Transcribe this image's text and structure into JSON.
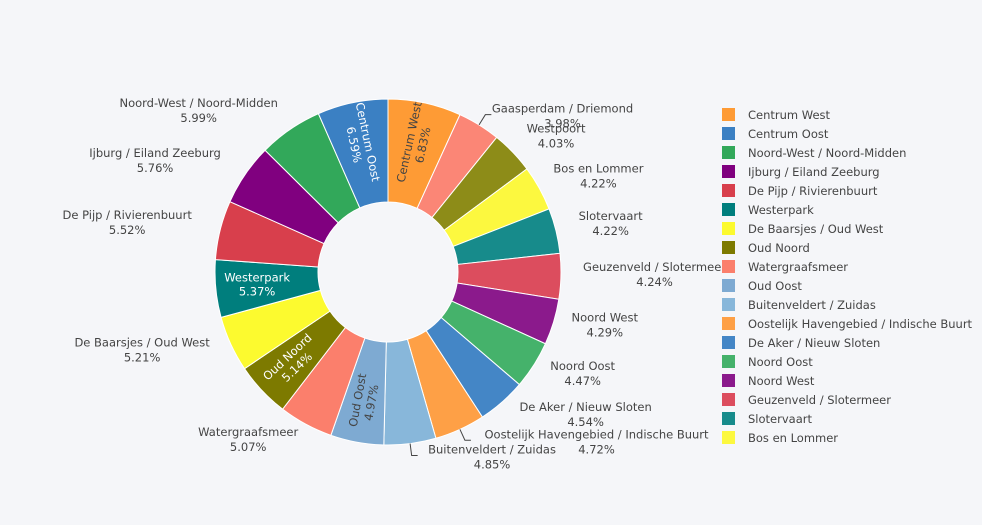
{
  "chart_data": {
    "type": "pie",
    "hole": true,
    "slices": [
      {
        "label": "Centrum West",
        "value": 6.83,
        "text": "6.83%",
        "color": "#fe9b35"
      },
      {
        "label": "Gaasperdam / Driemond",
        "value": 3.98,
        "text": "3.98%",
        "color": "#fb8676"
      },
      {
        "label": "Westpoort",
        "value": 4.03,
        "text": "4.03%",
        "color": "#8d8c18"
      },
      {
        "label": "Bos en Lommer",
        "value": 4.22,
        "text": "4.22%",
        "color": "#fcf83f"
      },
      {
        "label": "Slotervaart",
        "value": 4.22,
        "text": "4.22%",
        "color": "#178b8b"
      },
      {
        "label": "Geuzenveld / Slotermeer",
        "value": 4.24,
        "text": "4.24%",
        "color": "#dc4d5e"
      },
      {
        "label": "Noord West",
        "value": 4.29,
        "text": "4.29%",
        "color": "#8b1a8c"
      },
      {
        "label": "Noord Oost",
        "value": 4.47,
        "text": "4.47%",
        "color": "#45b26b"
      },
      {
        "label": "De Aker / Nieuw Sloten",
        "value": 4.54,
        "text": "4.54%",
        "color": "#4486c6"
      },
      {
        "label": "Oostelijk Havengebied / Indische Buurt",
        "value": 4.72,
        "text": "4.72%",
        "color": "#fea046"
      },
      {
        "label": "Buitenveldert / Zuidas",
        "value": 4.85,
        "text": "4.85%",
        "color": "#88b7da"
      },
      {
        "label": "Oud Oost",
        "value": 4.97,
        "text": "4.97%",
        "color": "#7eaad2"
      },
      {
        "label": "Watergraafsmeer",
        "value": 5.07,
        "text": "5.07%",
        "color": "#fb7f6c"
      },
      {
        "label": "Oud Noord",
        "value": 5.14,
        "text": "5.14%",
        "color": "#7d7a00"
      },
      {
        "label": "De Baarsjes / Oud West",
        "value": 5.21,
        "text": "5.21%",
        "color": "#fcfa2f"
      },
      {
        "label": "Westerpark",
        "value": 5.37,
        "text": "5.37%",
        "color": "#007e7d"
      },
      {
        "label": "De Pijp / Rivierenbuurt",
        "value": 5.52,
        "text": "5.52%",
        "color": "#d83f4c"
      },
      {
        "label": "Ijburg / Eiland Zeeburg",
        "value": 5.76,
        "text": "5.76%",
        "color": "#80007f"
      },
      {
        "label": "Noord-West / Noord-Midden",
        "value": 5.99,
        "text": "5.99%",
        "color": "#32a85a"
      },
      {
        "label": "Centrum Oost",
        "value": 6.59,
        "text": "6.59%",
        "color": "#3b80c3"
      }
    ],
    "legend_position": "right",
    "legend": [
      {
        "label": "Centrum West",
        "color": "#fe9b35"
      },
      {
        "label": "Centrum Oost",
        "color": "#3b80c3"
      },
      {
        "label": "Noord-West / Noord-Midden",
        "color": "#32a85a"
      },
      {
        "label": "Ijburg / Eiland Zeeburg",
        "color": "#80007f"
      },
      {
        "label": "De Pijp / Rivierenbuurt",
        "color": "#d83f4c"
      },
      {
        "label": "Westerpark",
        "color": "#007e7d"
      },
      {
        "label": "De Baarsjes / Oud West",
        "color": "#fcfa2f"
      },
      {
        "label": "Oud Noord",
        "color": "#7d7a00"
      },
      {
        "label": "Watergraafsmeer",
        "color": "#fb7f6c"
      },
      {
        "label": "Oud Oost",
        "color": "#7eaad2"
      },
      {
        "label": "Buitenveldert / Zuidas",
        "color": "#88b7da"
      },
      {
        "label": "Oostelijk Havengebied / Indische Buurt",
        "color": "#fea046"
      },
      {
        "label": "De Aker / Nieuw Sloten",
        "color": "#4486c6"
      },
      {
        "label": "Noord Oost",
        "color": "#45b26b"
      },
      {
        "label": "Noord West",
        "color": "#8b1a8c"
      },
      {
        "label": "Geuzenveld / Slotermeer",
        "color": "#dc4d5e"
      },
      {
        "label": "Slotervaart",
        "color": "#178b8b"
      },
      {
        "label": "Bos en Lommer",
        "color": "#fcf83f"
      }
    ]
  }
}
